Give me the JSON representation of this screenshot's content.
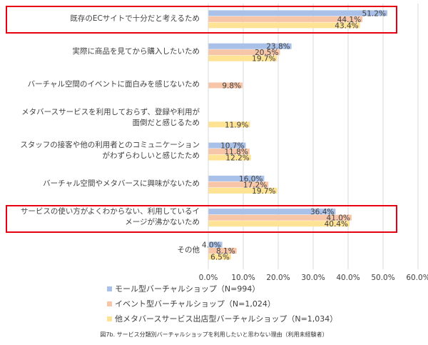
{
  "chart_data": {
    "type": "bar",
    "orientation": "horizontal",
    "categories": [
      "既存のECサイトで十分だと考えるため",
      "実際に商品を見てから購入したいため",
      "バーチャル空間のイベントに面白みを感じないため",
      "メタバースサービスを利用しておらず、登録や利用が\n面倒だと感じるため",
      "スタッフの接客や他の利用者とのコミュニケーション\nがわずらわしいと感じたため",
      "バーチャル空間やメタバースに興味がないため",
      "サービスの使い方がよくわからない、利用しているイ\nメージが沸かないため",
      "その他"
    ],
    "series": [
      {
        "name": "モール型バーチャルショップ（N=994）",
        "color": "#a9c0e8",
        "values": [
          51.2,
          23.8,
          null,
          null,
          10.7,
          16.0,
          36.4,
          4.0
        ]
      },
      {
        "name": "イベント型バーチャルショップ（N=1,024）",
        "color": "#f7c6a8",
        "values": [
          44.1,
          20.5,
          9.8,
          null,
          11.8,
          17.2,
          41.0,
          8.1
        ]
      },
      {
        "name": "他メタバースサービス出店型バーチャルショップ（N=1,034）",
        "color": "#ffe394",
        "values": [
          43.4,
          19.7,
          null,
          11.9,
          12.2,
          19.7,
          40.4,
          6.5
        ]
      }
    ],
    "xlim": [
      0,
      60
    ],
    "xticks": [
      "0.0%",
      "10.0%",
      "20.0%",
      "30.0%",
      "40.0%",
      "50.0%",
      "60.0%"
    ],
    "grid": true,
    "legend": "bottom",
    "highlighted_categories": [
      0,
      6
    ],
    "highlight_color": "#e60012"
  },
  "caption": "図7b. サービス分類別バーチャルショップを利用したいと思わない理由（利用未経験者）"
}
